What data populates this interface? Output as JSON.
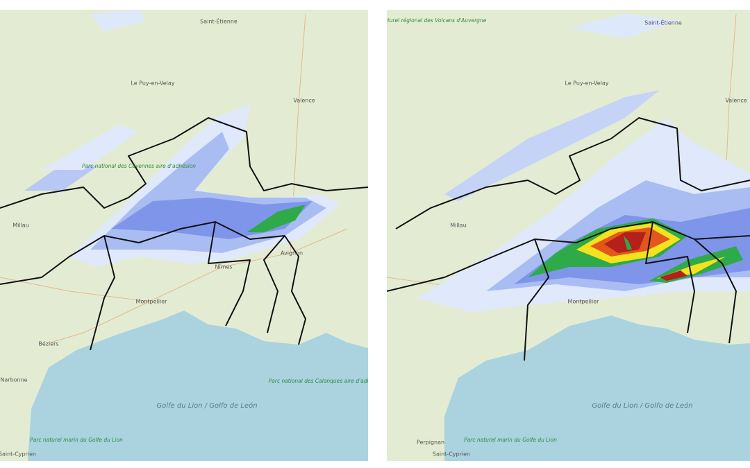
{
  "panels": [
    {
      "labels": [
        "Saint-Étienne",
        "Le Puy-en-Velay",
        "Valence",
        "Parc national des Cévennes aire d'adhésion",
        "Millau",
        "Avignon",
        "Nîmes",
        "Montpellier",
        "Béziers",
        "Narbonne",
        "Golfe du Lion / Golfo de León",
        "Parc naturel marin du Golfe du Lion",
        "Parc national des Calanques aire d'adhésion",
        "Saint-Cyprien"
      ]
    },
    {
      "labels": [
        "Parc naturel régional des Volcans d'Auvergne",
        "Saint-Étienne",
        "Le Puy-en-Velay",
        "Valence",
        "Millau",
        "Montpellier",
        "Golfe du Lion / Golfo de León",
        "Parc naturel marin du Golfe du Lion",
        "Perpignan",
        "Saint-Cyprien"
      ]
    }
  ]
}
